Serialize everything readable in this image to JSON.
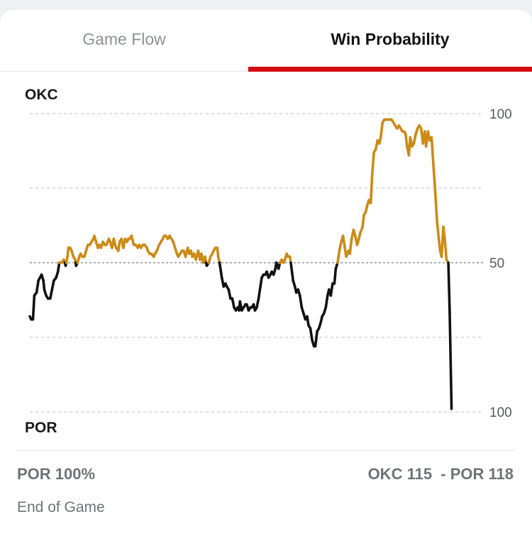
{
  "tabs": [
    {
      "label": "Game Flow",
      "active": false
    },
    {
      "label": "Win Probability",
      "active": true
    }
  ],
  "colors": {
    "accent": "#d40a10",
    "okc_line": "#cc8a16",
    "por_line": "#111111",
    "grid": "#c8cbcf"
  },
  "chart_data": {
    "type": "line",
    "top_team": "OKC",
    "bottom_team": "POR",
    "y_tick_labels": [
      "100",
      "50",
      "100"
    ],
    "ylim": [
      0,
      100
    ],
    "xlim": [
      0,
      100
    ],
    "midline": 50,
    "grid": true,
    "series": [
      {
        "values": [
          [
            0.0,
            32
          ],
          [
            0.3,
            31
          ],
          [
            0.7,
            31
          ],
          [
            1.0,
            39
          ],
          [
            1.5,
            40
          ],
          [
            1.9,
            44
          ],
          [
            2.6,
            46
          ],
          [
            3.0,
            44
          ],
          [
            3.2,
            41
          ],
          [
            3.6,
            39
          ],
          [
            4.0,
            38
          ],
          [
            4.5,
            38
          ],
          [
            4.9,
            41
          ],
          [
            5.3,
            44
          ],
          [
            5.8,
            45
          ],
          [
            6.2,
            47
          ],
          [
            6.5,
            50
          ],
          [
            7.0,
            50
          ],
          [
            7.5,
            51
          ],
          [
            7.9,
            49
          ],
          [
            8.3,
            52
          ],
          [
            8.5,
            55
          ],
          [
            8.9,
            55
          ],
          [
            9.2,
            54
          ],
          [
            9.6,
            52
          ],
          [
            10.0,
            51
          ],
          [
            10.2,
            49
          ],
          [
            10.5,
            50
          ],
          [
            10.9,
            52
          ],
          [
            11.2,
            53
          ],
          [
            11.6,
            52
          ],
          [
            12.0,
            52
          ],
          [
            12.4,
            54
          ],
          [
            12.8,
            56
          ],
          [
            13.2,
            56
          ],
          [
            13.6,
            57
          ],
          [
            14.0,
            58
          ],
          [
            14.2,
            59
          ],
          [
            14.6,
            57
          ],
          [
            15.0,
            55
          ],
          [
            15.3,
            56
          ],
          [
            15.7,
            55
          ],
          [
            16.1,
            57
          ],
          [
            16.5,
            56
          ],
          [
            16.9,
            56
          ],
          [
            17.4,
            58
          ],
          [
            17.7,
            57
          ],
          [
            18.1,
            55
          ],
          [
            18.5,
            58
          ],
          [
            18.8,
            56
          ],
          [
            19.0,
            55
          ],
          [
            19.5,
            54
          ],
          [
            19.8,
            57
          ],
          [
            20.2,
            58
          ],
          [
            20.6,
            55
          ],
          [
            21.0,
            58
          ],
          [
            21.4,
            57
          ],
          [
            21.7,
            58
          ],
          [
            22.0,
            58
          ],
          [
            22.4,
            59
          ],
          [
            22.9,
            56
          ],
          [
            23.3,
            56
          ],
          [
            23.8,
            55
          ],
          [
            24.1,
            56
          ],
          [
            24.5,
            55
          ],
          [
            24.9,
            56
          ],
          [
            25.3,
            56
          ],
          [
            25.8,
            55
          ],
          [
            26.0,
            54
          ],
          [
            26.4,
            53
          ],
          [
            26.8,
            53
          ],
          [
            27.3,
            52
          ],
          [
            27.6,
            53
          ],
          [
            28.0,
            54
          ],
          [
            28.5,
            56
          ],
          [
            28.9,
            57
          ],
          [
            29.3,
            58
          ],
          [
            29.6,
            59
          ],
          [
            30.0,
            59
          ],
          [
            30.4,
            58
          ],
          [
            30.8,
            59
          ],
          [
            31.2,
            58
          ],
          [
            31.6,
            57
          ],
          [
            32.0,
            55
          ],
          [
            32.4,
            53
          ],
          [
            32.7,
            52
          ],
          [
            33.1,
            53
          ],
          [
            33.5,
            54
          ],
          [
            33.9,
            54
          ],
          [
            34.3,
            52
          ],
          [
            34.8,
            55
          ],
          [
            35.1,
            53
          ],
          [
            35.5,
            54
          ],
          [
            35.8,
            52
          ],
          [
            36.2,
            53
          ],
          [
            36.6,
            51
          ],
          [
            37.1,
            54
          ],
          [
            37.5,
            51
          ],
          [
            37.8,
            53
          ],
          [
            38.2,
            50
          ],
          [
            38.6,
            52
          ],
          [
            38.8,
            50
          ],
          [
            39.0,
            49
          ],
          [
            39.4,
            50
          ],
          [
            39.8,
            52
          ],
          [
            40.2,
            53
          ],
          [
            40.5,
            54
          ],
          [
            40.9,
            55
          ],
          [
            41.3,
            55
          ],
          [
            41.5,
            52
          ],
          [
            41.8,
            50
          ],
          [
            42.3,
            45
          ],
          [
            42.7,
            42
          ],
          [
            43.1,
            43
          ],
          [
            43.4,
            42
          ],
          [
            43.8,
            41
          ],
          [
            44.2,
            38
          ],
          [
            44.6,
            38
          ],
          [
            45.0,
            35
          ],
          [
            45.4,
            34
          ],
          [
            45.8,
            35
          ],
          [
            46.1,
            34
          ],
          [
            46.3,
            37
          ],
          [
            46.7,
            34
          ],
          [
            47.1,
            35
          ],
          [
            47.5,
            36
          ],
          [
            47.8,
            36
          ],
          [
            48.2,
            34
          ],
          [
            48.6,
            35
          ],
          [
            48.9,
            35
          ],
          [
            49.3,
            36
          ],
          [
            49.6,
            34
          ],
          [
            50.0,
            35
          ],
          [
            50.4,
            38
          ],
          [
            50.8,
            42
          ],
          [
            51.1,
            45
          ],
          [
            51.5,
            46
          ],
          [
            51.9,
            46
          ],
          [
            52.2,
            47
          ],
          [
            52.6,
            45
          ],
          [
            53.0,
            46
          ],
          [
            53.3,
            47
          ],
          [
            53.7,
            46
          ],
          [
            54.1,
            48
          ],
          [
            54.3,
            50
          ],
          [
            54.8,
            48
          ],
          [
            55.1,
            50
          ],
          [
            55.5,
            51
          ],
          [
            55.9,
            50
          ],
          [
            56.2,
            51
          ],
          [
            56.6,
            53
          ],
          [
            56.9,
            52
          ],
          [
            57.3,
            52
          ],
          [
            57.5,
            50
          ],
          [
            58.0,
            44
          ],
          [
            58.4,
            42
          ],
          [
            58.7,
            40
          ],
          [
            59.1,
            41
          ],
          [
            59.5,
            39
          ],
          [
            59.9,
            35
          ],
          [
            60.3,
            33
          ],
          [
            60.7,
            31
          ],
          [
            61.1,
            32
          ],
          [
            61.4,
            29
          ],
          [
            61.8,
            28
          ],
          [
            62.2,
            24
          ],
          [
            62.6,
            22
          ],
          [
            62.9,
            22
          ],
          [
            63.3,
            27
          ],
          [
            63.7,
            28
          ],
          [
            64.1,
            30
          ],
          [
            64.4,
            32
          ],
          [
            64.8,
            33
          ],
          [
            65.2,
            35
          ],
          [
            65.6,
            39
          ],
          [
            65.9,
            41
          ],
          [
            66.3,
            39
          ],
          [
            66.7,
            43
          ],
          [
            67.1,
            43
          ],
          [
            67.4,
            48
          ],
          [
            67.8,
            50
          ],
          [
            68.2,
            54
          ],
          [
            68.6,
            57
          ],
          [
            69.0,
            59
          ],
          [
            69.4,
            55
          ],
          [
            69.7,
            52
          ],
          [
            70.2,
            54
          ],
          [
            70.5,
            53
          ],
          [
            70.9,
            58
          ],
          [
            71.3,
            61
          ],
          [
            71.7,
            59
          ],
          [
            72.1,
            56
          ],
          [
            72.5,
            58
          ],
          [
            72.8,
            60
          ],
          [
            73.3,
            62
          ],
          [
            73.6,
            66
          ],
          [
            74.0,
            67
          ],
          [
            74.3,
            69
          ],
          [
            74.7,
            71
          ],
          [
            75.1,
            70
          ],
          [
            75.4,
            79
          ],
          [
            75.8,
            87
          ],
          [
            76.2,
            88
          ],
          [
            76.6,
            91
          ],
          [
            77.0,
            90
          ],
          [
            77.3,
            92
          ],
          [
            77.7,
            97
          ],
          [
            78.1,
            98
          ],
          [
            78.5,
            98
          ],
          [
            78.9,
            98
          ],
          [
            79.3,
            98
          ],
          [
            79.7,
            98
          ],
          [
            80.1,
            97
          ],
          [
            80.5,
            96
          ],
          [
            80.9,
            95
          ],
          [
            81.3,
            96
          ],
          [
            81.7,
            95
          ],
          [
            82.1,
            94
          ],
          [
            82.5,
            94
          ],
          [
            82.8,
            93
          ],
          [
            83.1,
            89
          ],
          [
            83.5,
            86
          ],
          [
            83.8,
            92
          ],
          [
            84.2,
            89
          ],
          [
            84.6,
            90
          ],
          [
            85.0,
            93
          ],
          [
            85.4,
            95
          ],
          [
            85.8,
            96
          ],
          [
            86.2,
            95
          ],
          [
            86.6,
            90
          ],
          [
            87.0,
            94
          ],
          [
            87.3,
            89
          ],
          [
            87.7,
            94
          ],
          [
            88.1,
            91
          ],
          [
            88.5,
            92
          ],
          [
            88.9,
            83
          ],
          [
            89.3,
            74
          ],
          [
            89.7,
            64
          ],
          [
            90.1,
            58
          ],
          [
            90.4,
            54
          ],
          [
            90.7,
            52
          ],
          [
            91.1,
            62
          ],
          [
            91.4,
            58
          ],
          [
            91.8,
            51
          ],
          [
            92.2,
            50
          ],
          [
            92.5,
            33
          ],
          [
            92.9,
            1
          ]
        ]
      }
    ]
  },
  "footer": {
    "win_probability": "POR 100%",
    "score": "OKC 115  - POR 118",
    "status": "End of Game"
  }
}
